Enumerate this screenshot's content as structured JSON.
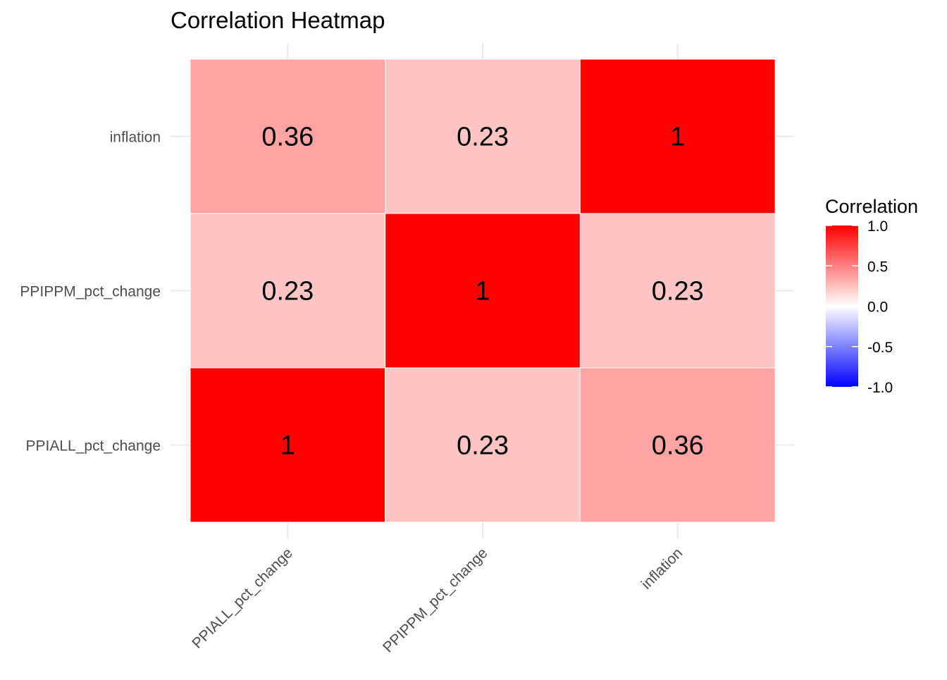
{
  "chart_data": {
    "type": "heatmap",
    "title": "Correlation Heatmap",
    "x_categories": [
      "PPIALL_pct_change",
      "PPIPPM_pct_change",
      "inflation"
    ],
    "y_categories": [
      "PPIALL_pct_change",
      "PPIPPM_pct_change",
      "inflation"
    ],
    "matrix": [
      [
        1,
        0.23,
        0.36
      ],
      [
        0.23,
        1,
        0.23
      ],
      [
        0.36,
        0.23,
        1
      ]
    ],
    "cell_labels": [
      [
        "1",
        "0.23",
        "0.36"
      ],
      [
        "0.23",
        "1",
        "0.23"
      ],
      [
        "0.36",
        "0.23",
        "1"
      ]
    ],
    "legend": {
      "title": "Correlation",
      "limits": [
        -1,
        1
      ],
      "ticks": [
        1.0,
        0.5,
        0.0,
        -0.5,
        -1.0
      ],
      "tick_labels": [
        "1.0",
        "0.5",
        "0.0",
        "-0.5",
        "-1.0"
      ],
      "position": "right"
    },
    "colors": {
      "low": "#0000ff",
      "mid": "#ffffff",
      "high": "#ff0000"
    },
    "grid": true
  }
}
